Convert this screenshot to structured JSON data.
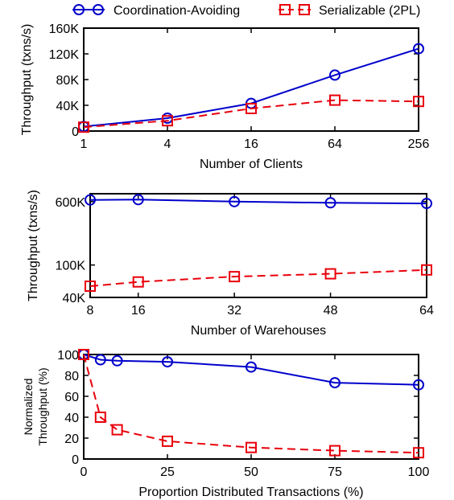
{
  "legend": {
    "placement": "top",
    "entries": [
      {
        "label": "Coordination-Avoiding",
        "color": "#0000cc",
        "marker": "circle",
        "line": "solid"
      },
      {
        "label": "Serializable (2PL)",
        "color": "#e8000b",
        "marker": "square",
        "line": "dashed"
      }
    ]
  },
  "chart_data": [
    {
      "type": "line",
      "xlabel": "Number of Clients",
      "ylabel": "Throughput (txns/s)",
      "x_scale": "log2",
      "x_ticks": [
        1,
        4,
        16,
        64,
        256
      ],
      "x_tick_labels": [
        "1",
        "4",
        "16",
        "64",
        "256"
      ],
      "xlim": [
        1,
        256
      ],
      "ylim": [
        0,
        160000
      ],
      "y_ticks": [
        0,
        40000,
        80000,
        120000,
        160000
      ],
      "y_tick_labels": [
        "0",
        "40K",
        "80K",
        "120K",
        "160K"
      ],
      "grid": false,
      "series": [
        {
          "name": "Coordination-Avoiding",
          "x": [
            1,
            4,
            16,
            64,
            256
          ],
          "y": [
            7000,
            20000,
            43000,
            87000,
            128000
          ]
        },
        {
          "name": "Serializable (2PL)",
          "x": [
            1,
            4,
            16,
            64,
            256
          ],
          "y": [
            6000,
            16000,
            35000,
            48000,
            46000
          ]
        }
      ]
    },
    {
      "type": "line",
      "xlabel": "Number of Warehouses",
      "ylabel": "Throughput (txns/s)",
      "x_scale": "linear",
      "x_ticks": [
        8,
        16,
        32,
        48,
        64
      ],
      "x_tick_labels": [
        "8",
        "16",
        "32",
        "48",
        "64"
      ],
      "xlim": [
        8,
        64
      ],
      "y_scale": "log",
      "ylim": [
        40000,
        750000
      ],
      "y_ticks": [
        40000,
        100000,
        600000
      ],
      "y_tick_labels": [
        "40K",
        "100K",
        "600K"
      ],
      "grid": false,
      "series": [
        {
          "name": "Coordination-Avoiding",
          "x": [
            8,
            16,
            32,
            48,
            64
          ],
          "y": [
            630000,
            635000,
            600000,
            580000,
            570000
          ]
        },
        {
          "name": "Serializable (2PL)",
          "x": [
            8,
            16,
            32,
            48,
            64
          ],
          "y": [
            55000,
            62000,
            72000,
            78000,
            87000
          ]
        }
      ]
    },
    {
      "type": "line",
      "xlabel": "Proportion Distributed Transactions (%)",
      "ylabel": "Normalized Throughput (%)",
      "ylabel_lines": [
        "Normalized",
        "Throughput (%)"
      ],
      "x_scale": "linear",
      "x_ticks": [
        0,
        25,
        50,
        75,
        100
      ],
      "x_tick_labels": [
        "0",
        "25",
        "50",
        "75",
        "100"
      ],
      "xlim": [
        0,
        100
      ],
      "ylim": [
        0,
        100
      ],
      "y_ticks": [
        0,
        20,
        40,
        60,
        80,
        100
      ],
      "y_tick_labels": [
        "0",
        "20",
        "40",
        "60",
        "80",
        "100"
      ],
      "grid": false,
      "series": [
        {
          "name": "Coordination-Avoiding",
          "x": [
            0,
            5,
            10,
            25,
            50,
            75,
            100
          ],
          "y": [
            100,
            95,
            94,
            93,
            88,
            73,
            71
          ]
        },
        {
          "name": "Serializable (2PL)",
          "x": [
            0,
            5,
            10,
            25,
            50,
            75,
            100
          ],
          "y": [
            100,
            40,
            28,
            17,
            11,
            8,
            6
          ]
        }
      ]
    }
  ]
}
